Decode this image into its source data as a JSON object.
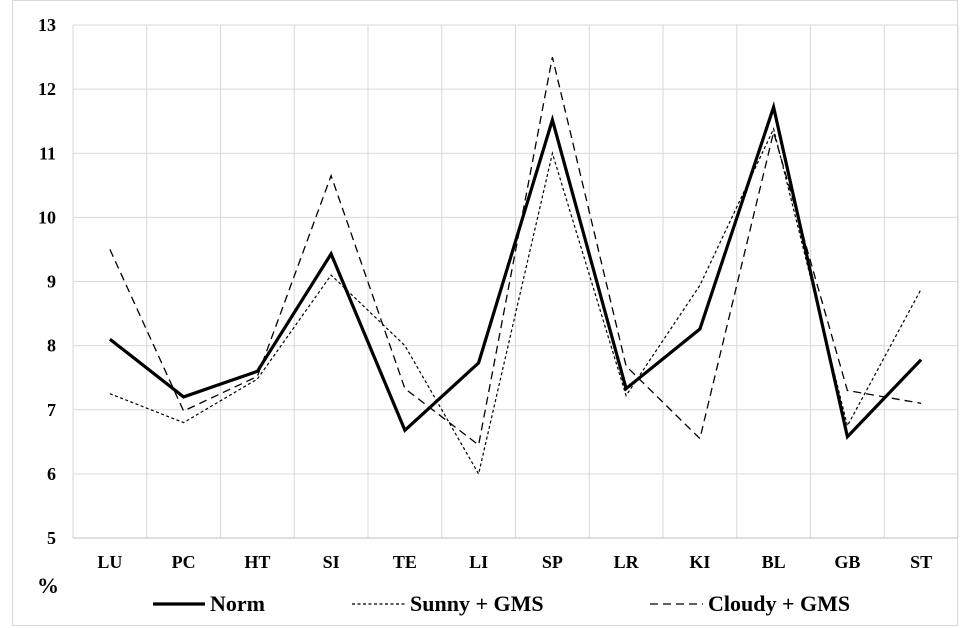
{
  "chart_data": {
    "type": "line",
    "categories": [
      "LU",
      "PC",
      "HT",
      "SI",
      "TE",
      "LI",
      "SP",
      "LR",
      "KI",
      "BL",
      "GB",
      "ST"
    ],
    "ylim": [
      5,
      13
    ],
    "yticks": [
      "5",
      "6",
      "7",
      "8",
      "9",
      "10",
      "11",
      "12",
      "13"
    ],
    "ylabel": "%",
    "grid": true,
    "legend": "bottom",
    "series": [
      {
        "name": "Norm",
        "style": "solid-thick",
        "color": "#000000",
        "values": [
          8.1,
          7.2,
          7.6,
          9.43,
          6.68,
          7.73,
          11.52,
          7.33,
          8.26,
          11.72,
          6.58,
          7.78
        ]
      },
      {
        "name": "Sunny + GMS",
        "style": "fine-dash",
        "color": "#000000",
        "values": [
          7.25,
          6.8,
          7.48,
          9.1,
          8.0,
          6.0,
          11.0,
          7.22,
          8.94,
          11.38,
          6.75,
          8.88
        ]
      },
      {
        "name": "Cloudy + GMS",
        "style": "dash",
        "color": "#000000",
        "values": [
          9.5,
          6.98,
          7.52,
          10.65,
          7.33,
          6.45,
          12.5,
          7.68,
          6.55,
          11.33,
          7.3,
          7.1
        ]
      }
    ]
  }
}
